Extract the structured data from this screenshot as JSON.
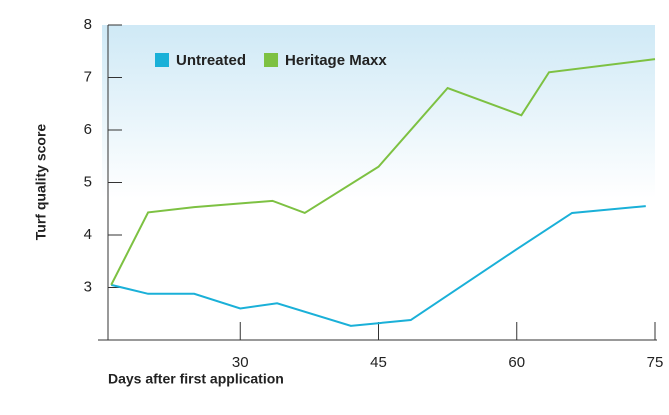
{
  "chart_data": {
    "type": "line",
    "xlabel": "Days after first application",
    "ylabel": "Turf quality score",
    "xlim": [
      15,
      75
    ],
    "xticks": [
      30,
      45,
      60,
      75
    ],
    "ylim": [
      2,
      8
    ],
    "yticks": [
      3,
      4,
      5,
      6,
      7,
      8
    ],
    "series": [
      {
        "name": "Untreated",
        "color": "#1ab0d8",
        "x": [
          16,
          20,
          25,
          30,
          34,
          42,
          48.5,
          60,
          66,
          74
        ],
        "values": [
          3.05,
          2.88,
          2.88,
          2.6,
          2.7,
          2.27,
          2.38,
          3.73,
          4.42,
          4.55
        ]
      },
      {
        "name": "Heritage Maxx",
        "color": "#7dc142",
        "x": [
          16,
          20,
          25,
          33.5,
          37,
          45,
          52.5,
          60.5,
          63.5,
          75
        ],
        "values": [
          3.05,
          4.43,
          4.53,
          4.65,
          4.42,
          5.3,
          6.8,
          6.28,
          7.1,
          7.35
        ]
      }
    ],
    "legend": "top-left"
  }
}
